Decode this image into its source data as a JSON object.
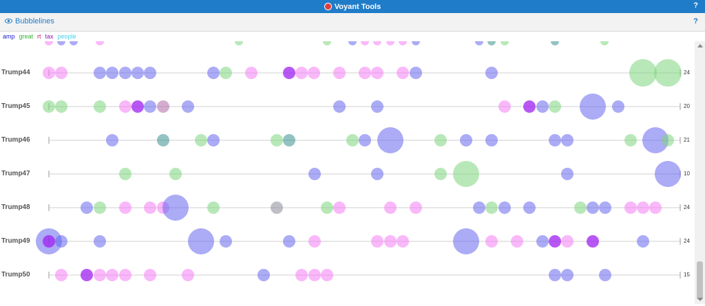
{
  "app": {
    "title": "Voyant Tools",
    "help": "?"
  },
  "panel": {
    "title": "Bubblelines",
    "help": "?"
  },
  "legend": [
    {
      "term": "amp",
      "color": "#1a1ad6"
    },
    {
      "term": "great",
      "color": "#35b335"
    },
    {
      "term": "rt",
      "color": "#c21a7a"
    },
    {
      "term": "tax",
      "color": "#8a1ab8"
    },
    {
      "term": "people",
      "color": "#3dd1e6"
    }
  ],
  "bubble_colors": {
    "blue": "#6666ee",
    "green": "#7dd67d",
    "pink": "#f47ef4",
    "purple": "#a020f0",
    "teal": "#3a8f8f",
    "mauve": "#b06aa6",
    "gray": "#8a8a9a"
  },
  "partial_top_row": {
    "bubbles": [
      [
        71,
        "pink",
        6
      ],
      [
        89,
        "blue",
        6
      ],
      [
        107,
        "blue",
        6
      ],
      [
        145,
        "pink",
        6
      ],
      [
        347,
        "green",
        6
      ],
      [
        475,
        "green",
        6
      ],
      [
        512,
        "blue",
        6
      ],
      [
        530,
        "pink",
        6
      ],
      [
        548,
        "pink",
        6
      ],
      [
        567,
        "pink",
        6
      ],
      [
        585,
        "pink",
        6
      ],
      [
        604,
        "blue",
        6
      ],
      [
        696,
        "blue",
        6
      ],
      [
        714,
        "teal",
        6
      ],
      [
        733,
        "green",
        6
      ],
      [
        806,
        "teal",
        6
      ],
      [
        878,
        "green",
        6
      ]
    ]
  },
  "rows": [
    {
      "label": "Trump44",
      "count": "24",
      "line_start": 71,
      "line_end": 988,
      "bubbles": [
        [
          71,
          "pink",
          9
        ],
        [
          89,
          "pink",
          9
        ],
        [
          145,
          "blue",
          9
        ],
        [
          163,
          "blue",
          9
        ],
        [
          182,
          "blue",
          9
        ],
        [
          200,
          "blue",
          9
        ],
        [
          218,
          "blue",
          9
        ],
        [
          310,
          "blue",
          9
        ],
        [
          328,
          "green",
          9
        ],
        [
          365,
          "pink",
          9
        ],
        [
          420,
          "purple",
          9
        ],
        [
          438,
          "pink",
          9
        ],
        [
          456,
          "pink",
          9
        ],
        [
          493,
          "pink",
          9
        ],
        [
          530,
          "pink",
          9
        ],
        [
          548,
          "pink",
          9
        ],
        [
          585,
          "pink",
          9
        ],
        [
          604,
          "blue",
          9
        ],
        [
          714,
          "blue",
          9
        ],
        [
          934,
          "green",
          20
        ],
        [
          970,
          "green",
          20
        ]
      ]
    },
    {
      "label": "Trump45",
      "count": "20",
      "line_start": 71,
      "line_end": 988,
      "bubbles": [
        [
          71,
          "green",
          9
        ],
        [
          89,
          "green",
          9
        ],
        [
          145,
          "green",
          9
        ],
        [
          182,
          "pink",
          9
        ],
        [
          200,
          "purple",
          9
        ],
        [
          218,
          "blue",
          9
        ],
        [
          237,
          "mauve",
          9
        ],
        [
          273,
          "blue",
          9
        ],
        [
          493,
          "blue",
          9
        ],
        [
          548,
          "blue",
          9
        ],
        [
          733,
          "pink",
          9
        ],
        [
          769,
          "purple",
          9
        ],
        [
          788,
          "blue",
          9
        ],
        [
          806,
          "green",
          9
        ],
        [
          861,
          "blue",
          19
        ],
        [
          898,
          "blue",
          9
        ]
      ]
    },
    {
      "label": "Trump46",
      "count": "21",
      "line_start": 71,
      "line_end": 988,
      "bubbles": [
        [
          163,
          "blue",
          9
        ],
        [
          237,
          "teal",
          9
        ],
        [
          292,
          "green",
          9
        ],
        [
          310,
          "blue",
          9
        ],
        [
          402,
          "green",
          9
        ],
        [
          420,
          "teal",
          9
        ],
        [
          512,
          "green",
          9
        ],
        [
          530,
          "blue",
          9
        ],
        [
          567,
          "blue",
          19
        ],
        [
          640,
          "green",
          9
        ],
        [
          677,
          "blue",
          9
        ],
        [
          714,
          "blue",
          9
        ],
        [
          806,
          "blue",
          9
        ],
        [
          824,
          "blue",
          9
        ],
        [
          916,
          "green",
          9
        ],
        [
          952,
          "blue",
          19
        ],
        [
          970,
          "green",
          9
        ]
      ]
    },
    {
      "label": "Trump47",
      "count": "10",
      "line_start": 71,
      "line_end": 988,
      "bubbles": [
        [
          182,
          "green",
          9
        ],
        [
          255,
          "green",
          9
        ],
        [
          457,
          "blue",
          9
        ],
        [
          548,
          "blue",
          9
        ],
        [
          640,
          "green",
          9
        ],
        [
          677,
          "green",
          19
        ],
        [
          824,
          "blue",
          9
        ],
        [
          970,
          "blue",
          19
        ]
      ]
    },
    {
      "label": "Trump48",
      "count": "24",
      "line_start": 71,
      "line_end": 988,
      "bubbles": [
        [
          126,
          "blue",
          9
        ],
        [
          145,
          "green",
          9
        ],
        [
          182,
          "pink",
          9
        ],
        [
          218,
          "pink",
          9
        ],
        [
          237,
          "pink",
          9
        ],
        [
          255,
          "blue",
          19
        ],
        [
          310,
          "green",
          9
        ],
        [
          402,
          "gray",
          9
        ],
        [
          475,
          "green",
          9
        ],
        [
          493,
          "pink",
          9
        ],
        [
          567,
          "pink",
          9
        ],
        [
          604,
          "pink",
          9
        ],
        [
          696,
          "blue",
          9
        ],
        [
          714,
          "green",
          9
        ],
        [
          733,
          "blue",
          9
        ],
        [
          769,
          "blue",
          9
        ],
        [
          843,
          "green",
          9
        ],
        [
          861,
          "blue",
          9
        ],
        [
          879,
          "blue",
          9
        ],
        [
          916,
          "pink",
          9
        ],
        [
          934,
          "pink",
          9
        ],
        [
          952,
          "pink",
          9
        ]
      ]
    },
    {
      "label": "Trump49",
      "count": "24",
      "line_start": 71,
      "line_end": 988,
      "bubbles": [
        [
          71,
          "blue",
          19
        ],
        [
          71,
          "purple",
          9
        ],
        [
          89,
          "blue",
          9
        ],
        [
          145,
          "blue",
          9
        ],
        [
          292,
          "blue",
          19
        ],
        [
          328,
          "blue",
          9
        ],
        [
          420,
          "blue",
          9
        ],
        [
          457,
          "pink",
          9
        ],
        [
          548,
          "pink",
          9
        ],
        [
          567,
          "pink",
          9
        ],
        [
          585,
          "pink",
          9
        ],
        [
          677,
          "blue",
          19
        ],
        [
          714,
          "pink",
          9
        ],
        [
          751,
          "pink",
          9
        ],
        [
          788,
          "blue",
          9
        ],
        [
          806,
          "purple",
          9
        ],
        [
          824,
          "pink",
          9
        ],
        [
          861,
          "purple",
          9
        ],
        [
          934,
          "blue",
          9
        ]
      ]
    },
    {
      "label": "Trump50",
      "count": "15",
      "line_start": 71,
      "line_end": 988,
      "bubbles": [
        [
          89,
          "pink",
          9
        ],
        [
          126,
          "purple",
          9
        ],
        [
          145,
          "pink",
          9
        ],
        [
          163,
          "pink",
          9
        ],
        [
          182,
          "pink",
          9
        ],
        [
          218,
          "pink",
          9
        ],
        [
          273,
          "pink",
          9
        ],
        [
          383,
          "blue",
          9
        ],
        [
          438,
          "pink",
          9
        ],
        [
          457,
          "pink",
          9
        ],
        [
          475,
          "pink",
          9
        ],
        [
          806,
          "blue",
          9
        ],
        [
          824,
          "blue",
          9
        ],
        [
          879,
          "blue",
          9
        ]
      ]
    }
  ]
}
